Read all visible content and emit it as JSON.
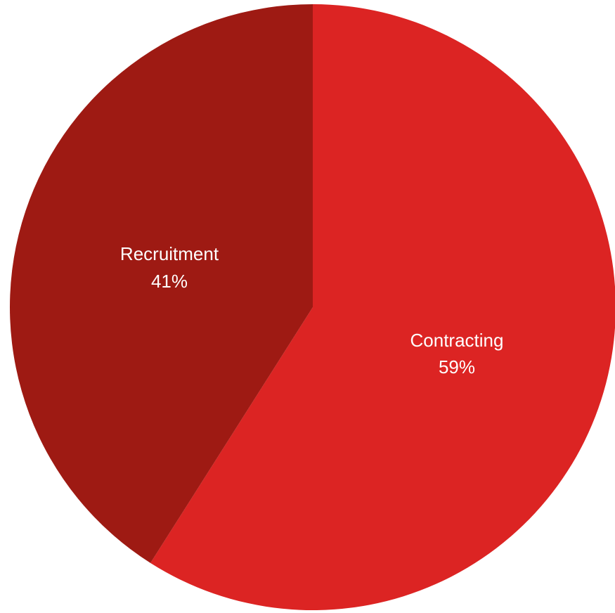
{
  "chart_data": {
    "type": "pie",
    "slices": [
      {
        "label": "Contracting",
        "value": 59,
        "display": "59%",
        "color": "#DC2423"
      },
      {
        "label": "Recruitment",
        "value": 41,
        "display": "41%",
        "color": "#9E1A13"
      }
    ]
  }
}
